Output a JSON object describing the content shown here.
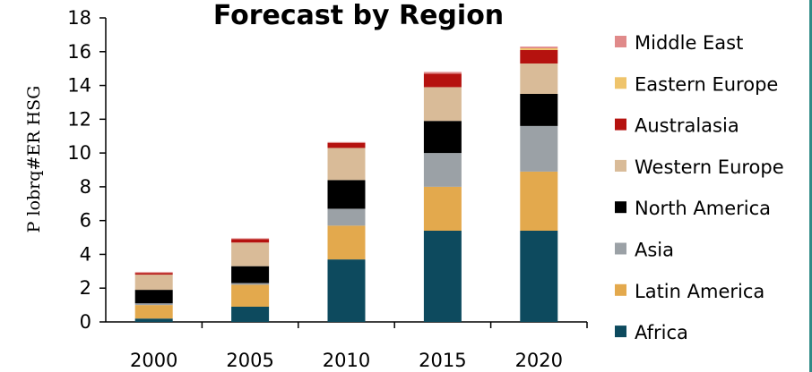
{
  "chart_data": {
    "type": "bar",
    "stacked": true,
    "title": "Forecast by Region",
    "xlabel": "",
    "ylabel": "P lobrq#ER HSG",
    "ylim": [
      0,
      18
    ],
    "yticks": [
      0,
      2,
      4,
      6,
      8,
      10,
      12,
      14,
      16,
      18
    ],
    "categories": [
      "2000",
      "2005",
      "2010",
      "2015",
      "2020"
    ],
    "legend_position": "right",
    "grid": false,
    "series": [
      {
        "name": "Africa",
        "color": "#0d4a5e",
        "values": [
          0.2,
          0.9,
          3.7,
          5.4,
          5.4
        ]
      },
      {
        "name": "Latin America",
        "color": "#e3a94d",
        "values": [
          0.8,
          1.3,
          2.0,
          2.6,
          3.5
        ]
      },
      {
        "name": "Asia",
        "color": "#9ba1a6",
        "values": [
          0.1,
          0.1,
          1.0,
          2.0,
          2.7
        ]
      },
      {
        "name": "North America",
        "color": "#000000",
        "values": [
          0.8,
          1.0,
          1.7,
          1.9,
          1.9
        ]
      },
      {
        "name": "Western Europe",
        "color": "#d9bb98",
        "values": [
          0.9,
          1.4,
          1.9,
          2.0,
          1.8
        ]
      },
      {
        "name": "Australasia",
        "color": "#b5120f",
        "values": [
          0.1,
          0.2,
          0.3,
          0.8,
          0.8
        ]
      },
      {
        "name": "Eastern Europe",
        "color": "#efc46b",
        "values": [
          0.0,
          0.0,
          0.0,
          0.0,
          0.1
        ]
      },
      {
        "name": "Middle East",
        "color": "#e08a8a",
        "values": [
          0.05,
          0.05,
          0.05,
          0.1,
          0.1
        ]
      }
    ]
  }
}
